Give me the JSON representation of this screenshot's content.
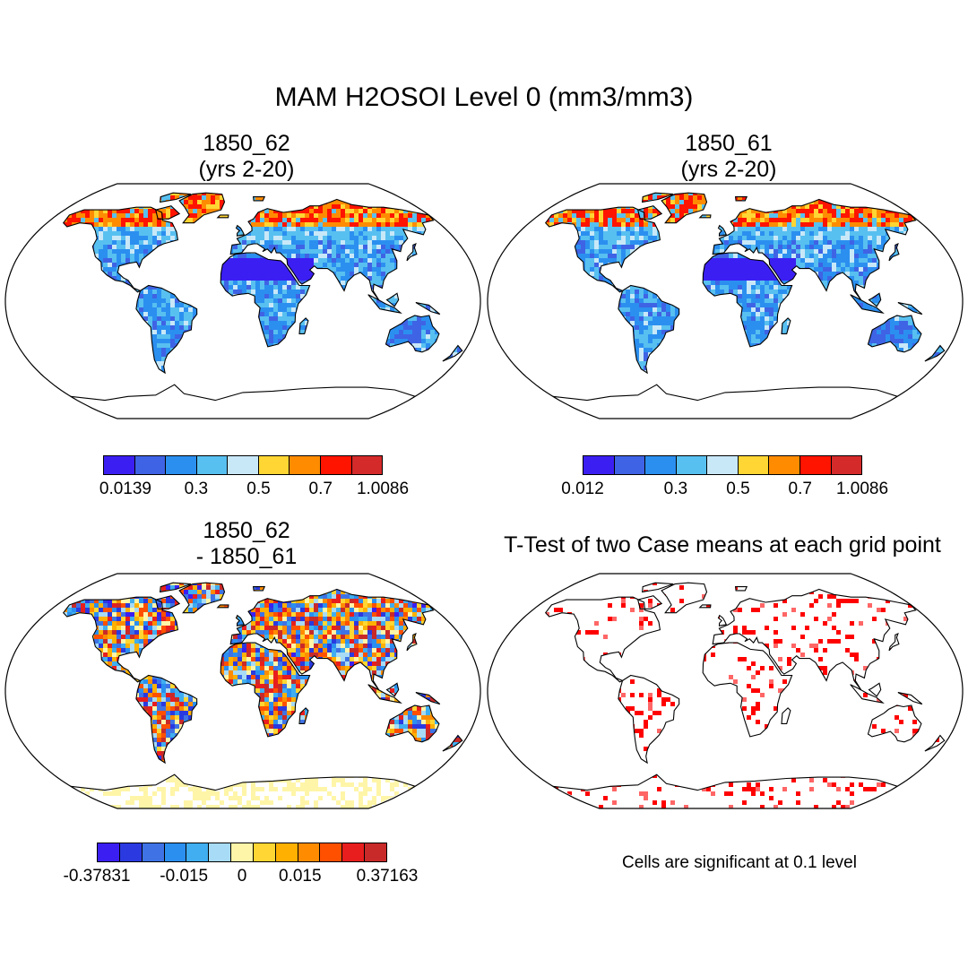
{
  "title": "MAM H2OSOI Level 0 (mm3/mm3)",
  "panels": [
    {
      "title_line1": "1850_62",
      "title_line2": "(yrs 2-20)",
      "colorbar": {
        "colors": [
          "#3b1ff2",
          "#3f63e5",
          "#2b8ff0",
          "#58c0f0",
          "#c8e8f8",
          "#ffd633",
          "#ff8c00",
          "#ff1400",
          "#d42a2a"
        ],
        "labels": [
          "0.0139",
          "0.3",
          "0.5",
          "0.7",
          "1.0086"
        ]
      }
    },
    {
      "title_line1": "1850_61",
      "title_line2": "(yrs 2-20)",
      "colorbar": {
        "colors": [
          "#3b1ff2",
          "#3f63e5",
          "#2b8ff0",
          "#58c0f0",
          "#c8e8f8",
          "#ffd633",
          "#ff8c00",
          "#ff1400",
          "#d42a2a"
        ],
        "labels": [
          "0.012",
          "0.3",
          "0.5",
          "0.7",
          "1.0086"
        ]
      }
    },
    {
      "title_line1": "1850_62",
      "title_line2": "- 1850_61",
      "colorbar": {
        "colors": [
          "#3b1ff2",
          "#2a3ae0",
          "#3f73e5",
          "#2b8ff0",
          "#40aef0",
          "#a8dbf5",
          "#fff5a8",
          "#ffd633",
          "#ffb000",
          "#ff8c00",
          "#ff5000",
          "#e81e1e",
          "#c82a2a"
        ],
        "labels": [
          "-0.37831",
          "-0.015",
          "0",
          "0.015",
          "0.37163"
        ]
      }
    },
    {
      "title_line1": "T-Test of two Case means at each grid point",
      "note": "Cells are significant at 0.1 level",
      "significance_color": "#ff0000"
    }
  ]
}
